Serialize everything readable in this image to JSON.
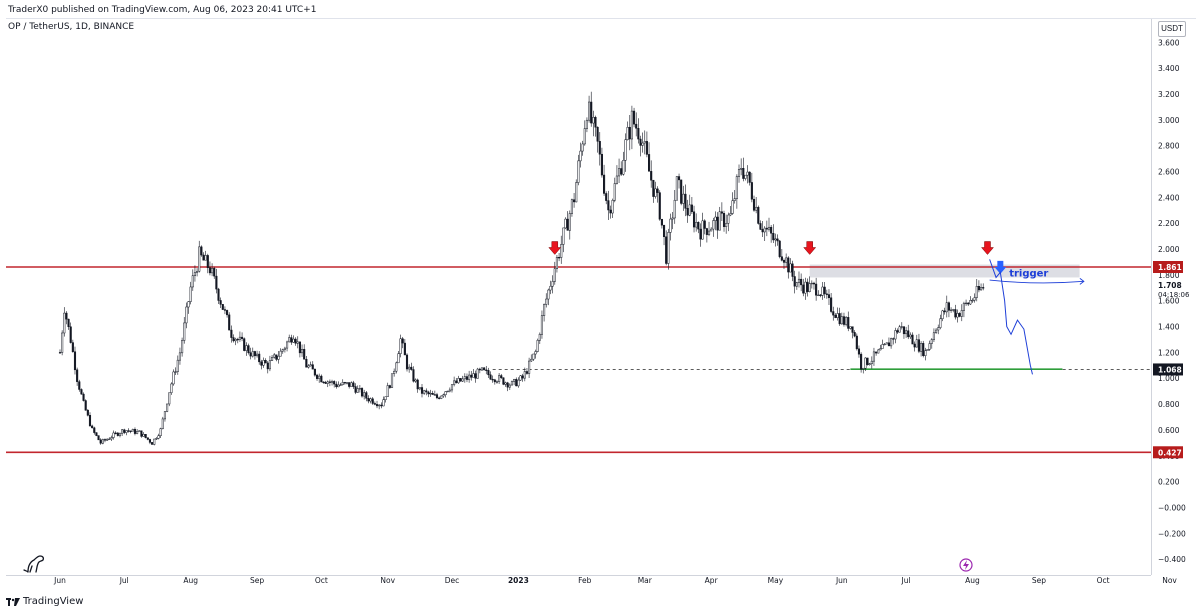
{
  "header": {
    "published_line": "TraderX0 published on TradingView.com, Aug 06, 2023 20:41 UTC+1",
    "symbol_line": "OP / TetherUS, 1D, BINANCE"
  },
  "currency_button": "USDT",
  "footer": {
    "brand": "TradingView"
  },
  "colors": {
    "level_line": "#c2262e",
    "badge_red": "#b71c1c",
    "candle": "#131722",
    "arrow_red": "#e8141e",
    "arrow_blue": "#2962ff",
    "drawing_blue": "#1e3fd8",
    "support_green": "#2e9e3a",
    "zone_fill": "#d7d8df",
    "grid_text": "#131722"
  },
  "chart_data": {
    "type": "candlestick",
    "x": [
      "Jun",
      "Jul",
      "Aug",
      "Sep",
      "Oct",
      "Nov",
      "Dec",
      "2023",
      "Feb",
      "Mar",
      "Apr",
      "May",
      "Jun",
      "Jul",
      "Aug",
      "Sep",
      "Oct",
      "Nov"
    ],
    "y_ticks": [
      "3.600",
      "3.400",
      "3.200",
      "3.000",
      "2.800",
      "2.600",
      "2.400",
      "2.200",
      "2.000",
      "1.800",
      "1.600",
      "1.400",
      "1.200",
      "1.000",
      "0.800",
      "0.600",
      "0.400",
      "0.200",
      "−0.000",
      "−0.200",
      "−0.400"
    ],
    "ylim": [
      -0.5,
      3.6
    ],
    "close_path": [
      [
        "2022-06-01",
        1.2
      ],
      [
        "2022-06-03",
        1.55
      ],
      [
        "2022-06-06",
        1.3
      ],
      [
        "2022-06-09",
        1.0
      ],
      [
        "2022-06-12",
        0.8
      ],
      [
        "2022-06-16",
        0.6
      ],
      [
        "2022-06-20",
        0.5
      ],
      [
        "2022-06-25",
        0.55
      ],
      [
        "2022-07-01",
        0.6
      ],
      [
        "2022-07-08",
        0.58
      ],
      [
        "2022-07-14",
        0.5
      ],
      [
        "2022-07-18",
        0.6
      ],
      [
        "2022-07-22",
        0.9
      ],
      [
        "2022-07-27",
        1.2
      ],
      [
        "2022-08-01",
        1.7
      ],
      [
        "2022-08-05",
        1.95
      ],
      [
        "2022-08-10",
        1.85
      ],
      [
        "2022-08-15",
        1.6
      ],
      [
        "2022-08-20",
        1.35
      ],
      [
        "2022-08-26",
        1.25
      ],
      [
        "2022-09-01",
        1.15
      ],
      [
        "2022-09-06",
        1.1
      ],
      [
        "2022-09-12",
        1.2
      ],
      [
        "2022-09-18",
        1.35
      ],
      [
        "2022-09-24",
        1.1
      ],
      [
        "2022-10-01",
        1.0
      ],
      [
        "2022-10-08",
        0.95
      ],
      [
        "2022-10-15",
        0.95
      ],
      [
        "2022-10-22",
        0.85
      ],
      [
        "2022-10-29",
        0.8
      ],
      [
        "2022-11-03",
        1.0
      ],
      [
        "2022-11-07",
        1.3
      ],
      [
        "2022-11-10",
        1.1
      ],
      [
        "2022-11-16",
        0.9
      ],
      [
        "2022-11-24",
        0.85
      ],
      [
        "2022-12-01",
        0.95
      ],
      [
        "2022-12-08",
        1.0
      ],
      [
        "2022-12-15",
        1.05
      ],
      [
        "2022-12-22",
        1.0
      ],
      [
        "2022-12-29",
        0.95
      ],
      [
        "2023-01-03",
        1.0
      ],
      [
        "2023-01-09",
        1.2
      ],
      [
        "2023-01-13",
        1.55
      ],
      [
        "2023-01-17",
        1.8
      ],
      [
        "2023-01-22",
        2.1
      ],
      [
        "2023-01-27",
        2.4
      ],
      [
        "2023-02-02",
        3.1
      ],
      [
        "2023-02-07",
        2.8
      ],
      [
        "2023-02-12",
        2.3
      ],
      [
        "2023-02-17",
        2.6
      ],
      [
        "2023-02-23",
        3.0
      ],
      [
        "2023-02-27",
        2.9
      ],
      [
        "2023-03-03",
        2.6
      ],
      [
        "2023-03-08",
        2.3
      ],
      [
        "2023-03-11",
        1.95
      ],
      [
        "2023-03-16",
        2.5
      ],
      [
        "2023-03-21",
        2.3
      ],
      [
        "2023-03-27",
        2.15
      ],
      [
        "2023-04-03",
        2.2
      ],
      [
        "2023-04-10",
        2.25
      ],
      [
        "2023-04-15",
        2.65
      ],
      [
        "2023-04-19",
        2.5
      ],
      [
        "2023-04-24",
        2.2
      ],
      [
        "2023-04-29",
        2.1
      ],
      [
        "2023-05-05",
        1.95
      ],
      [
        "2023-05-10",
        1.75
      ],
      [
        "2023-05-16",
        1.7
      ],
      [
        "2023-05-21",
        1.7
      ],
      [
        "2023-05-27",
        1.55
      ],
      [
        "2023-06-01",
        1.45
      ],
      [
        "2023-06-06",
        1.4
      ],
      [
        "2023-06-10",
        1.1
      ],
      [
        "2023-06-15",
        1.15
      ],
      [
        "2023-06-22",
        1.25
      ],
      [
        "2023-06-28",
        1.4
      ],
      [
        "2023-07-04",
        1.3
      ],
      [
        "2023-07-10",
        1.2
      ],
      [
        "2023-07-15",
        1.4
      ],
      [
        "2023-07-20",
        1.55
      ],
      [
        "2023-07-25",
        1.5
      ],
      [
        "2023-07-31",
        1.6
      ],
      [
        "2023-08-06",
        1.71
      ]
    ],
    "horizontal_levels": [
      {
        "label": "1.861",
        "value": 1.861
      },
      {
        "label": "0.427",
        "value": 0.427
      }
    ],
    "dashed_level": {
      "label": "1.068",
      "value": 1.068,
      "start": "2022-12-20"
    },
    "current_price": {
      "label": "1.708",
      "countdown": "04:18:06",
      "value": 1.708
    },
    "resistance_zone": {
      "start": "2023-05-17",
      "end": "2023-09-20",
      "top": 1.88,
      "bottom": 1.78
    },
    "support_line": {
      "start": "2023-06-05",
      "end": "2023-09-12",
      "value": 1.07
    },
    "down_arrows": [
      {
        "date": "2023-01-18",
        "price": 1.95,
        "color": "red"
      },
      {
        "date": "2023-05-17",
        "price": 1.95,
        "color": "red"
      },
      {
        "date": "2023-08-08",
        "price": 1.95,
        "color": "red"
      },
      {
        "date": "2023-08-14",
        "price": 1.8,
        "color": "blue"
      }
    ],
    "annotation": {
      "text": "trigger",
      "date": "2023-08-20",
      "price": 1.78
    },
    "projection_path": [
      [
        "2023-08-09",
        1.92
      ],
      [
        "2023-08-12",
        1.78
      ],
      [
        "2023-08-14",
        1.82
      ],
      [
        "2023-08-16",
        1.6
      ],
      [
        "2023-08-17",
        1.4
      ],
      [
        "2023-08-19",
        1.34
      ],
      [
        "2023-08-22",
        1.45
      ],
      [
        "2023-08-25",
        1.38
      ],
      [
        "2023-08-28",
        1.1
      ],
      [
        "2023-08-29",
        1.03
      ]
    ],
    "small_arrow_path": [
      [
        "2023-08-09",
        1.76
      ],
      [
        "2023-09-22",
        1.75
      ]
    ]
  }
}
